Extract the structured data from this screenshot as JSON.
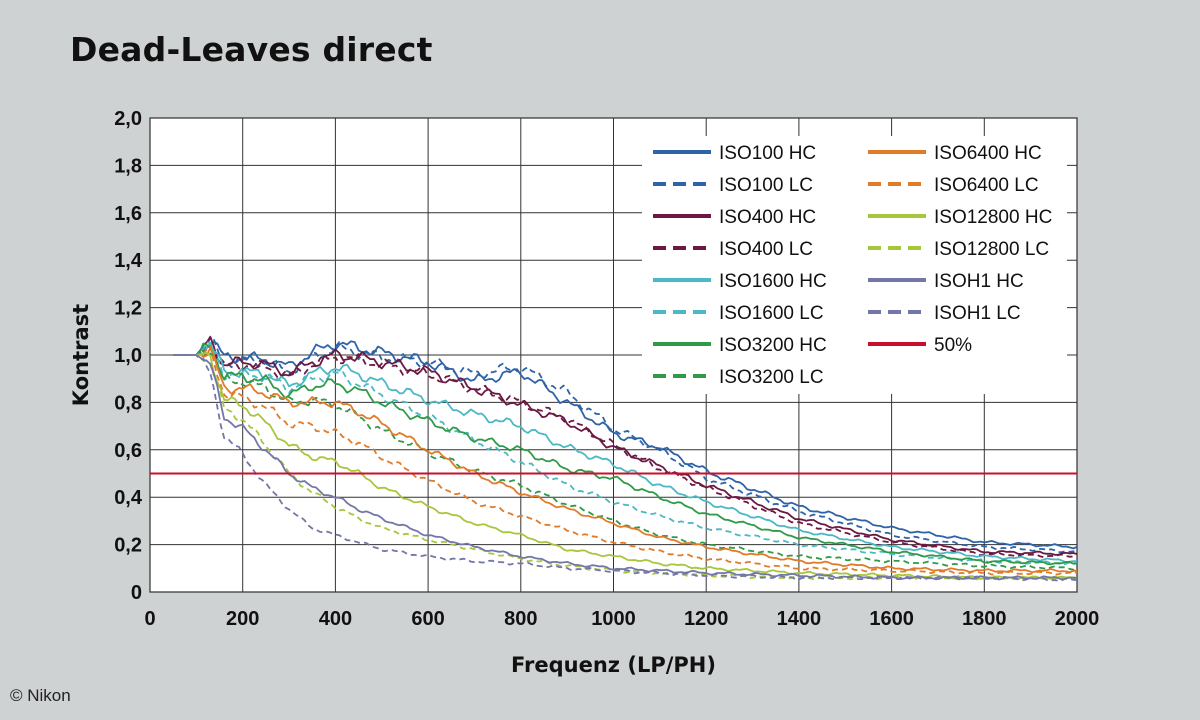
{
  "chart_data": {
    "type": "line",
    "title": "Dead-Leaves direct",
    "xlabel": "Frequenz (LP/PH)",
    "ylabel": "Kontrast",
    "xlim": [
      0,
      2000
    ],
    "ylim": [
      0,
      2.0
    ],
    "x_ticks": [
      "0",
      "200",
      "400",
      "600",
      "800",
      "1000",
      "1200",
      "1400",
      "1600",
      "1800",
      "2000"
    ],
    "y_ticks": [
      "0",
      "0,2",
      "0,4",
      "0,6",
      "0,8",
      "1,0",
      "1,2",
      "1,4",
      "1,6",
      "1,8",
      "2,0"
    ],
    "grid": true,
    "legend_position": "top-right",
    "reference_line": {
      "name": "50%",
      "y": 0.5,
      "color": "#c8102e"
    },
    "series": [
      {
        "name": "ISO100 HC",
        "color": "#2e63a8",
        "dashed": false,
        "x": [
          50,
          100,
          130,
          160,
          200,
          250,
          300,
          350,
          400,
          450,
          500,
          600,
          700,
          800,
          900,
          1000,
          1100,
          1200,
          1400,
          1600,
          1800,
          2000
        ],
        "y": [
          1.0,
          1.0,
          1.07,
          0.99,
          0.99,
          0.98,
          0.95,
          1.01,
          1.05,
          1.03,
          1.01,
          0.97,
          0.89,
          0.93,
          0.8,
          0.67,
          0.61,
          0.51,
          0.36,
          0.27,
          0.21,
          0.19
        ]
      },
      {
        "name": "ISO100 LC",
        "color": "#2e63a8",
        "dashed": true,
        "x": [
          50,
          100,
          130,
          160,
          200,
          250,
          300,
          350,
          400,
          450,
          500,
          600,
          700,
          800,
          900,
          1000,
          1100,
          1200,
          1400,
          1600,
          1800,
          2000
        ],
        "y": [
          1.0,
          1.0,
          1.06,
          0.97,
          0.98,
          0.97,
          0.93,
          0.99,
          1.03,
          1.01,
          0.99,
          0.97,
          0.92,
          0.95,
          0.84,
          0.69,
          0.6,
          0.48,
          0.34,
          0.24,
          0.19,
          0.17
        ]
      },
      {
        "name": "ISO400 HC",
        "color": "#6b1942",
        "dashed": false,
        "x": [
          50,
          100,
          130,
          160,
          200,
          250,
          300,
          350,
          400,
          450,
          500,
          600,
          700,
          800,
          900,
          1000,
          1100,
          1200,
          1400,
          1600,
          1800,
          2000
        ],
        "y": [
          1.0,
          1.0,
          1.06,
          0.96,
          0.97,
          0.96,
          0.92,
          0.97,
          1.0,
          0.99,
          0.97,
          0.93,
          0.86,
          0.79,
          0.72,
          0.61,
          0.53,
          0.45,
          0.31,
          0.22,
          0.17,
          0.16
        ]
      },
      {
        "name": "ISO400 LC",
        "color": "#6b1942",
        "dashed": true,
        "x": [
          50,
          100,
          130,
          160,
          200,
          250,
          300,
          350,
          400,
          450,
          500,
          600,
          700,
          800,
          900,
          1000,
          1100,
          1200,
          1400,
          1600,
          1800,
          2000
        ],
        "y": [
          1.0,
          1.0,
          1.05,
          0.95,
          0.96,
          0.95,
          0.91,
          0.96,
          0.99,
          0.98,
          0.96,
          0.92,
          0.86,
          0.8,
          0.73,
          0.62,
          0.52,
          0.44,
          0.29,
          0.21,
          0.16,
          0.15
        ]
      },
      {
        "name": "ISO1600 HC",
        "color": "#4bb8c4",
        "dashed": false,
        "x": [
          50,
          100,
          130,
          160,
          200,
          250,
          300,
          350,
          400,
          450,
          500,
          600,
          700,
          800,
          900,
          1000,
          1100,
          1200,
          1400,
          1600,
          1800,
          2000
        ],
        "y": [
          1.0,
          1.0,
          1.05,
          0.93,
          0.93,
          0.92,
          0.87,
          0.92,
          0.95,
          0.92,
          0.88,
          0.81,
          0.75,
          0.7,
          0.61,
          0.54,
          0.45,
          0.38,
          0.26,
          0.19,
          0.15,
          0.13
        ]
      },
      {
        "name": "ISO1600 LC",
        "color": "#4bb8c4",
        "dashed": true,
        "x": [
          50,
          100,
          130,
          160,
          200,
          250,
          300,
          350,
          400,
          450,
          500,
          600,
          700,
          800,
          900,
          1000,
          1100,
          1200,
          1400,
          1600,
          1800,
          2000
        ],
        "y": [
          1.0,
          1.0,
          1.04,
          0.92,
          0.92,
          0.91,
          0.86,
          0.9,
          0.92,
          0.88,
          0.83,
          0.74,
          0.64,
          0.55,
          0.45,
          0.38,
          0.32,
          0.27,
          0.2,
          0.16,
          0.13,
          0.12
        ]
      },
      {
        "name": "ISO3200 HC",
        "color": "#2f9a48",
        "dashed": false,
        "x": [
          50,
          100,
          130,
          160,
          200,
          250,
          300,
          350,
          400,
          450,
          500,
          600,
          700,
          800,
          900,
          1000,
          1100,
          1200,
          1400,
          1600,
          1800,
          2000
        ],
        "y": [
          1.0,
          1.0,
          1.04,
          0.91,
          0.91,
          0.89,
          0.83,
          0.87,
          0.88,
          0.85,
          0.8,
          0.72,
          0.65,
          0.6,
          0.52,
          0.48,
          0.4,
          0.33,
          0.23,
          0.17,
          0.13,
          0.12
        ]
      },
      {
        "name": "ISO3200 LC",
        "color": "#2f9a48",
        "dashed": true,
        "x": [
          50,
          100,
          130,
          160,
          200,
          250,
          300,
          350,
          400,
          450,
          500,
          600,
          700,
          800,
          900,
          1000,
          1100,
          1200,
          1400,
          1600,
          1800,
          2000
        ],
        "y": [
          1.0,
          1.0,
          1.03,
          0.89,
          0.89,
          0.86,
          0.8,
          0.81,
          0.79,
          0.74,
          0.68,
          0.59,
          0.51,
          0.45,
          0.37,
          0.3,
          0.24,
          0.2,
          0.15,
          0.13,
          0.11,
          0.1
        ]
      },
      {
        "name": "ISO6400 HC",
        "color": "#e07b2a",
        "dashed": false,
        "x": [
          50,
          100,
          130,
          160,
          200,
          250,
          300,
          350,
          400,
          450,
          500,
          600,
          700,
          800,
          900,
          1000,
          1100,
          1200,
          1400,
          1600,
          1800,
          2000
        ],
        "y": [
          1.0,
          1.0,
          1.02,
          0.86,
          0.86,
          0.84,
          0.8,
          0.8,
          0.8,
          0.76,
          0.71,
          0.6,
          0.5,
          0.42,
          0.35,
          0.29,
          0.23,
          0.19,
          0.13,
          0.1,
          0.09,
          0.09
        ]
      },
      {
        "name": "ISO6400 LC",
        "color": "#e07b2a",
        "dashed": true,
        "x": [
          50,
          100,
          130,
          160,
          200,
          250,
          300,
          350,
          400,
          450,
          500,
          600,
          700,
          800,
          900,
          1000,
          1100,
          1200,
          1400,
          1600,
          1800,
          2000
        ],
        "y": [
          1.0,
          1.0,
          1.01,
          0.84,
          0.82,
          0.78,
          0.71,
          0.7,
          0.67,
          0.63,
          0.57,
          0.47,
          0.38,
          0.32,
          0.26,
          0.21,
          0.17,
          0.14,
          0.1,
          0.09,
          0.08,
          0.08
        ]
      },
      {
        "name": "ISO12800 HC",
        "color": "#a8c63c",
        "dashed": false,
        "x": [
          50,
          100,
          130,
          160,
          200,
          250,
          300,
          350,
          400,
          450,
          500,
          600,
          700,
          800,
          900,
          1000,
          1100,
          1200,
          1400,
          1600,
          1800,
          2000
        ],
        "y": [
          1.0,
          1.0,
          1.0,
          0.81,
          0.79,
          0.71,
          0.62,
          0.57,
          0.55,
          0.5,
          0.44,
          0.36,
          0.29,
          0.24,
          0.18,
          0.15,
          0.12,
          0.1,
          0.08,
          0.07,
          0.06,
          0.06
        ]
      },
      {
        "name": "ISO12800 LC",
        "color": "#a8c63c",
        "dashed": true,
        "x": [
          50,
          100,
          130,
          160,
          200,
          250,
          300,
          350,
          400,
          450,
          500,
          600,
          700,
          800,
          900,
          1000,
          1100,
          1200,
          1400,
          1600,
          1800,
          2000
        ],
        "y": [
          1.0,
          1.0,
          0.98,
          0.77,
          0.73,
          0.62,
          0.5,
          0.42,
          0.36,
          0.31,
          0.27,
          0.22,
          0.18,
          0.14,
          0.11,
          0.09,
          0.08,
          0.07,
          0.06,
          0.06,
          0.06,
          0.06
        ]
      },
      {
        "name": "ISOH1 HC",
        "color": "#7377a8",
        "dashed": false,
        "x": [
          50,
          100,
          130,
          160,
          200,
          250,
          300,
          350,
          400,
          450,
          500,
          600,
          700,
          800,
          900,
          1000,
          1100,
          1200,
          1400,
          1600,
          1800,
          2000
        ],
        "y": [
          1.0,
          1.0,
          0.96,
          0.74,
          0.69,
          0.6,
          0.5,
          0.44,
          0.4,
          0.35,
          0.31,
          0.24,
          0.19,
          0.15,
          0.12,
          0.1,
          0.09,
          0.08,
          0.07,
          0.06,
          0.06,
          0.06
        ]
      },
      {
        "name": "ISOH1 LC",
        "color": "#7377a8",
        "dashed": true,
        "x": [
          50,
          100,
          130,
          160,
          200,
          250,
          300,
          350,
          400,
          450,
          500,
          600,
          700,
          800,
          900,
          1000,
          1100,
          1200,
          1400,
          1600,
          1800,
          2000
        ],
        "y": [
          1.0,
          1.0,
          0.92,
          0.66,
          0.58,
          0.45,
          0.35,
          0.27,
          0.24,
          0.21,
          0.18,
          0.15,
          0.13,
          0.12,
          0.1,
          0.09,
          0.08,
          0.07,
          0.06,
          0.06,
          0.06,
          0.05
        ]
      }
    ]
  },
  "copyright": "© Nikon"
}
